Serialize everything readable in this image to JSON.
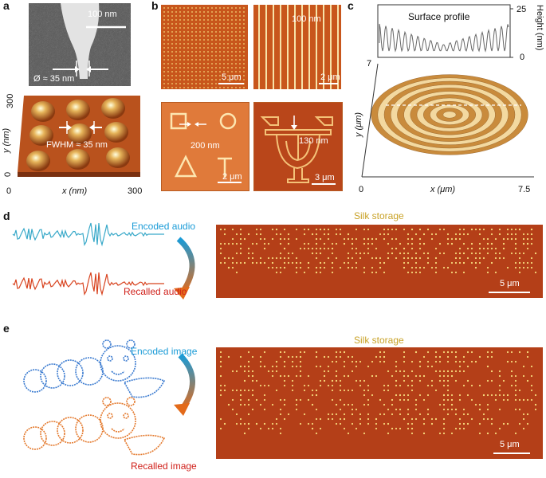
{
  "panels": {
    "a": {
      "label": "a",
      "sem_scale": "100 nm",
      "diameter": "Ø ≈ 35 nm",
      "fwhm": "FWHM ≈ 35 nm",
      "y_axis": "y (nm)",
      "x_axis": "x (nm)",
      "ticks": {
        "y_max": "300",
        "x_min": "0",
        "y_min": "0",
        "x_max": "300"
      }
    },
    "b": {
      "label": "b",
      "dots_scale": "5 μm",
      "lines_width": "100 nm",
      "lines_scale": "2 μm",
      "shapes_width": "200 nm",
      "shapes_scale": "2 μm",
      "logo_width": "130 nm",
      "logo_scale": "3 μm"
    },
    "c": {
      "label": "c",
      "profile_title": "Surface profile",
      "height_axis": "Height (nm)",
      "h_ticks": {
        "top": "25",
        "bottom": "0"
      },
      "y_axis": "y (μm)",
      "x_axis": "x (μm)",
      "ticks": {
        "y_max": "7",
        "x_min": "0",
        "x_max": "7.5"
      }
    },
    "d": {
      "label": "d",
      "encoded": "Encoded audio",
      "recalled": "Recalled audio",
      "storage": "Silk storage",
      "scale": "5 μm"
    },
    "e": {
      "label": "e",
      "encoded": "Encoded image",
      "recalled": "Recalled image",
      "storage": "Silk storage",
      "scale": "5 μm"
    }
  },
  "colors": {
    "encoded": "#1a9bd7",
    "recalled": "#d0201a",
    "storage_title": "#c9a227",
    "afm_bg": "#b7461a",
    "dot": "#f5d77a"
  }
}
